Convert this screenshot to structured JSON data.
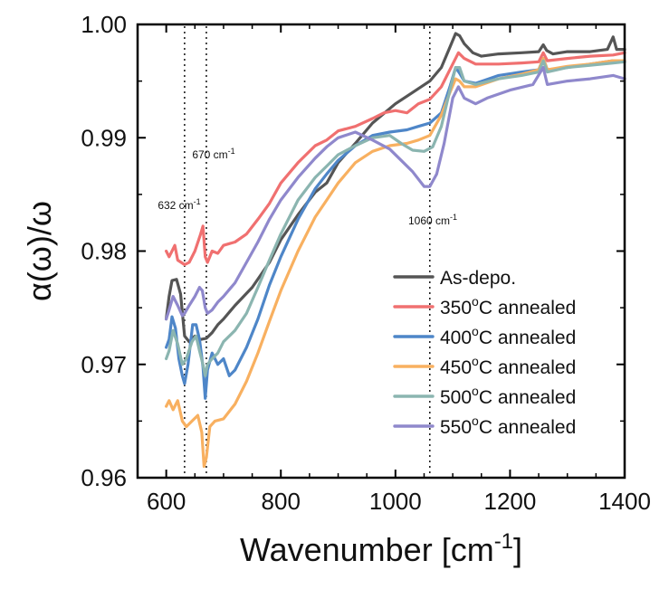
{
  "chart_data": {
    "type": "line",
    "xlabel": "Wavenumber [cm",
    "xlabel_sup": "-1",
    "xlabel_end": "]",
    "ylabel": "α(ω)/ω",
    "xlim": [
      550,
      1400
    ],
    "ylim": [
      0.96,
      1.0
    ],
    "x_ticks": [
      600,
      800,
      1000,
      1200,
      1400
    ],
    "x_tick_labels": [
      "600",
      "800",
      "1000",
      "1200",
      "1400"
    ],
    "y_ticks": [
      0.96,
      0.97,
      0.98,
      0.99,
      1.0
    ],
    "y_tick_labels": [
      "0.96",
      "0.97",
      "0.98",
      "0.99",
      "1.00"
    ],
    "grid": false,
    "legend_position": "bottom-right",
    "annotations": [
      {
        "x": 632,
        "label": "632 cm",
        "sup": "-1"
      },
      {
        "x": 670,
        "label": "670 cm",
        "sup": "-1"
      },
      {
        "x": 1060,
        "label": "1060 cm",
        "sup": "-1"
      }
    ],
    "series": [
      {
        "name": "As-depo.",
        "name_sup": "",
        "name_suffix": "",
        "color": "#555555",
        "points": [
          [
            600,
            0.974
          ],
          [
            605,
            0.976
          ],
          [
            610,
            0.9774
          ],
          [
            618,
            0.9775
          ],
          [
            625,
            0.9762
          ],
          [
            632,
            0.9725
          ],
          [
            640,
            0.972
          ],
          [
            650,
            0.9725
          ],
          [
            660,
            0.9722
          ],
          [
            670,
            0.9723
          ],
          [
            680,
            0.9728
          ],
          [
            690,
            0.9735
          ],
          [
            700,
            0.974
          ],
          [
            720,
            0.9752
          ],
          [
            750,
            0.9768
          ],
          [
            780,
            0.979
          ],
          [
            800,
            0.981
          ],
          [
            830,
            0.9832
          ],
          [
            860,
            0.9852
          ],
          [
            880,
            0.986
          ],
          [
            900,
            0.9878
          ],
          [
            930,
            0.9895
          ],
          [
            960,
            0.9913
          ],
          [
            1000,
            0.993
          ],
          [
            1030,
            0.994
          ],
          [
            1060,
            0.995
          ],
          [
            1080,
            0.9962
          ],
          [
            1095,
            0.998
          ],
          [
            1105,
            0.9992
          ],
          [
            1112,
            0.999
          ],
          [
            1120,
            0.9983
          ],
          [
            1135,
            0.9975
          ],
          [
            1150,
            0.9972
          ],
          [
            1180,
            0.9974
          ],
          [
            1220,
            0.9975
          ],
          [
            1250,
            0.9976
          ],
          [
            1258,
            0.9982
          ],
          [
            1264,
            0.9977
          ],
          [
            1275,
            0.9974
          ],
          [
            1300,
            0.9976
          ],
          [
            1340,
            0.9976
          ],
          [
            1370,
            0.9978
          ],
          [
            1380,
            0.9989
          ],
          [
            1386,
            0.9978
          ],
          [
            1400,
            0.9978
          ]
        ]
      },
      {
        "name": "350",
        "name_sup": "o",
        "name_suffix": "C annealed",
        "color": "#f07070",
        "points": [
          [
            600,
            0.98
          ],
          [
            605,
            0.9795
          ],
          [
            610,
            0.98
          ],
          [
            615,
            0.9805
          ],
          [
            620,
            0.9792
          ],
          [
            632,
            0.9788
          ],
          [
            640,
            0.979
          ],
          [
            650,
            0.98
          ],
          [
            660,
            0.9815
          ],
          [
            664,
            0.9822
          ],
          [
            668,
            0.9795
          ],
          [
            672,
            0.979
          ],
          [
            680,
            0.98
          ],
          [
            690,
            0.9798
          ],
          [
            700,
            0.9805
          ],
          [
            720,
            0.9808
          ],
          [
            740,
            0.9815
          ],
          [
            760,
            0.9828
          ],
          [
            780,
            0.9842
          ],
          [
            800,
            0.986
          ],
          [
            830,
            0.9878
          ],
          [
            860,
            0.9893
          ],
          [
            880,
            0.9898
          ],
          [
            900,
            0.9906
          ],
          [
            930,
            0.991
          ],
          [
            960,
            0.9917
          ],
          [
            980,
            0.9922
          ],
          [
            1000,
            0.9924
          ],
          [
            1020,
            0.9922
          ],
          [
            1040,
            0.993
          ],
          [
            1060,
            0.9934
          ],
          [
            1080,
            0.9945
          ],
          [
            1100,
            0.9965
          ],
          [
            1110,
            0.9975
          ],
          [
            1120,
            0.997
          ],
          [
            1140,
            0.9965
          ],
          [
            1180,
            0.9965
          ],
          [
            1220,
            0.9966
          ],
          [
            1250,
            0.9967
          ],
          [
            1258,
            0.9975
          ],
          [
            1265,
            0.9968
          ],
          [
            1300,
            0.997
          ],
          [
            1340,
            0.9972
          ],
          [
            1380,
            0.9973
          ],
          [
            1400,
            0.9975
          ]
        ]
      },
      {
        "name": "400",
        "name_sup": "o",
        "name_suffix": "C annealed",
        "color": "#4e86c8",
        "points": [
          [
            600,
            0.9715
          ],
          [
            605,
            0.9722
          ],
          [
            610,
            0.9742
          ],
          [
            616,
            0.9732
          ],
          [
            622,
            0.9705
          ],
          [
            628,
            0.969
          ],
          [
            632,
            0.9683
          ],
          [
            638,
            0.97
          ],
          [
            646,
            0.9735
          ],
          [
            652,
            0.9735
          ],
          [
            658,
            0.9722
          ],
          [
            664,
            0.9698
          ],
          [
            668,
            0.967
          ],
          [
            672,
            0.9695
          ],
          [
            680,
            0.971
          ],
          [
            690,
            0.97
          ],
          [
            700,
            0.9705
          ],
          [
            710,
            0.969
          ],
          [
            720,
            0.9695
          ],
          [
            740,
            0.9715
          ],
          [
            760,
            0.974
          ],
          [
            780,
            0.977
          ],
          [
            800,
            0.9795
          ],
          [
            830,
            0.9828
          ],
          [
            860,
            0.9855
          ],
          [
            880,
            0.9868
          ],
          [
            900,
            0.988
          ],
          [
            930,
            0.9893
          ],
          [
            960,
            0.9902
          ],
          [
            990,
            0.9905
          ],
          [
            1020,
            0.9907
          ],
          [
            1040,
            0.991
          ],
          [
            1060,
            0.9913
          ],
          [
            1080,
            0.9922
          ],
          [
            1095,
            0.9945
          ],
          [
            1105,
            0.9962
          ],
          [
            1112,
            0.9957
          ],
          [
            1120,
            0.995
          ],
          [
            1140,
            0.9948
          ],
          [
            1180,
            0.9955
          ],
          [
            1220,
            0.9958
          ],
          [
            1250,
            0.996
          ],
          [
            1258,
            0.997
          ],
          [
            1265,
            0.996
          ],
          [
            1300,
            0.9962
          ],
          [
            1340,
            0.9965
          ],
          [
            1380,
            0.9968
          ],
          [
            1400,
            0.9967
          ]
        ]
      },
      {
        "name": "450",
        "name_sup": "o",
        "name_suffix": "C annealed",
        "color": "#f8b060",
        "points": [
          [
            600,
            0.9663
          ],
          [
            605,
            0.9668
          ],
          [
            612,
            0.966
          ],
          [
            620,
            0.9668
          ],
          [
            628,
            0.965
          ],
          [
            635,
            0.9645
          ],
          [
            645,
            0.965
          ],
          [
            655,
            0.9655
          ],
          [
            662,
            0.964
          ],
          [
            666,
            0.961
          ],
          [
            670,
            0.9618
          ],
          [
            676,
            0.9645
          ],
          [
            685,
            0.965
          ],
          [
            700,
            0.9652
          ],
          [
            720,
            0.9665
          ],
          [
            740,
            0.9685
          ],
          [
            760,
            0.971
          ],
          [
            780,
            0.9738
          ],
          [
            800,
            0.9765
          ],
          [
            830,
            0.98
          ],
          [
            860,
            0.983
          ],
          [
            880,
            0.9845
          ],
          [
            900,
            0.986
          ],
          [
            930,
            0.9878
          ],
          [
            960,
            0.9888
          ],
          [
            990,
            0.9893
          ],
          [
            1020,
            0.9895
          ],
          [
            1040,
            0.9898
          ],
          [
            1060,
            0.9902
          ],
          [
            1080,
            0.992
          ],
          [
            1095,
            0.994
          ],
          [
            1105,
            0.9952
          ],
          [
            1112,
            0.995
          ],
          [
            1120,
            0.9945
          ],
          [
            1140,
            0.9945
          ],
          [
            1180,
            0.9952
          ],
          [
            1220,
            0.9956
          ],
          [
            1250,
            0.996
          ],
          [
            1258,
            0.997
          ],
          [
            1265,
            0.996
          ],
          [
            1300,
            0.9963
          ],
          [
            1340,
            0.9965
          ],
          [
            1380,
            0.9968
          ],
          [
            1400,
            0.9968
          ]
        ]
      },
      {
        "name": "500",
        "name_sup": "o",
        "name_suffix": "C annealed",
        "color": "#8bb5b0",
        "points": [
          [
            600,
            0.9705
          ],
          [
            605,
            0.9712
          ],
          [
            612,
            0.973
          ],
          [
            620,
            0.9718
          ],
          [
            628,
            0.97
          ],
          [
            635,
            0.9705
          ],
          [
            645,
            0.972
          ],
          [
            652,
            0.9725
          ],
          [
            658,
            0.9712
          ],
          [
            664,
            0.97
          ],
          [
            668,
            0.969
          ],
          [
            672,
            0.97
          ],
          [
            680,
            0.9705
          ],
          [
            690,
            0.971
          ],
          [
            700,
            0.972
          ],
          [
            720,
            0.973
          ],
          [
            740,
            0.9745
          ],
          [
            760,
            0.9768
          ],
          [
            780,
            0.9792
          ],
          [
            800,
            0.9815
          ],
          [
            830,
            0.9845
          ],
          [
            860,
            0.9865
          ],
          [
            880,
            0.9875
          ],
          [
            900,
            0.9885
          ],
          [
            930,
            0.9893
          ],
          [
            960,
            0.99
          ],
          [
            990,
            0.9902
          ],
          [
            1010,
            0.9895
          ],
          [
            1030,
            0.9889
          ],
          [
            1050,
            0.9888
          ],
          [
            1065,
            0.9892
          ],
          [
            1080,
            0.991
          ],
          [
            1095,
            0.9942
          ],
          [
            1105,
            0.9962
          ],
          [
            1112,
            0.9962
          ],
          [
            1120,
            0.995
          ],
          [
            1140,
            0.9947
          ],
          [
            1180,
            0.9952
          ],
          [
            1220,
            0.9955
          ],
          [
            1250,
            0.9958
          ],
          [
            1258,
            0.9968
          ],
          [
            1265,
            0.9958
          ],
          [
            1300,
            0.9962
          ],
          [
            1340,
            0.9964
          ],
          [
            1380,
            0.9966
          ],
          [
            1400,
            0.9967
          ]
        ]
      },
      {
        "name": "550",
        "name_sup": "o",
        "name_suffix": "C annealed",
        "color": "#8f88cc",
        "points": [
          [
            600,
            0.974
          ],
          [
            605,
            0.9748
          ],
          [
            612,
            0.976
          ],
          [
            620,
            0.9752
          ],
          [
            628,
            0.9743
          ],
          [
            632,
            0.9745
          ],
          [
            640,
            0.9752
          ],
          [
            650,
            0.976
          ],
          [
            658,
            0.9768
          ],
          [
            663,
            0.9765
          ],
          [
            668,
            0.975
          ],
          [
            672,
            0.9745
          ],
          [
            680,
            0.9748
          ],
          [
            690,
            0.9755
          ],
          [
            700,
            0.976
          ],
          [
            720,
            0.9772
          ],
          [
            740,
            0.979
          ],
          [
            760,
            0.9808
          ],
          [
            780,
            0.9828
          ],
          [
            800,
            0.9845
          ],
          [
            830,
            0.9865
          ],
          [
            860,
            0.9882
          ],
          [
            880,
            0.9892
          ],
          [
            900,
            0.99
          ],
          [
            930,
            0.9905
          ],
          [
            960,
            0.9898
          ],
          [
            990,
            0.989
          ],
          [
            1010,
            0.988
          ],
          [
            1030,
            0.987
          ],
          [
            1050,
            0.9857
          ],
          [
            1060,
            0.9857
          ],
          [
            1072,
            0.9868
          ],
          [
            1085,
            0.9895
          ],
          [
            1100,
            0.9935
          ],
          [
            1110,
            0.9945
          ],
          [
            1120,
            0.9935
          ],
          [
            1140,
            0.993
          ],
          [
            1160,
            0.9935
          ],
          [
            1200,
            0.9942
          ],
          [
            1240,
            0.9947
          ],
          [
            1258,
            0.9962
          ],
          [
            1265,
            0.9947
          ],
          [
            1300,
            0.995
          ],
          [
            1340,
            0.9952
          ],
          [
            1380,
            0.9955
          ],
          [
            1400,
            0.9952
          ]
        ]
      }
    ]
  }
}
